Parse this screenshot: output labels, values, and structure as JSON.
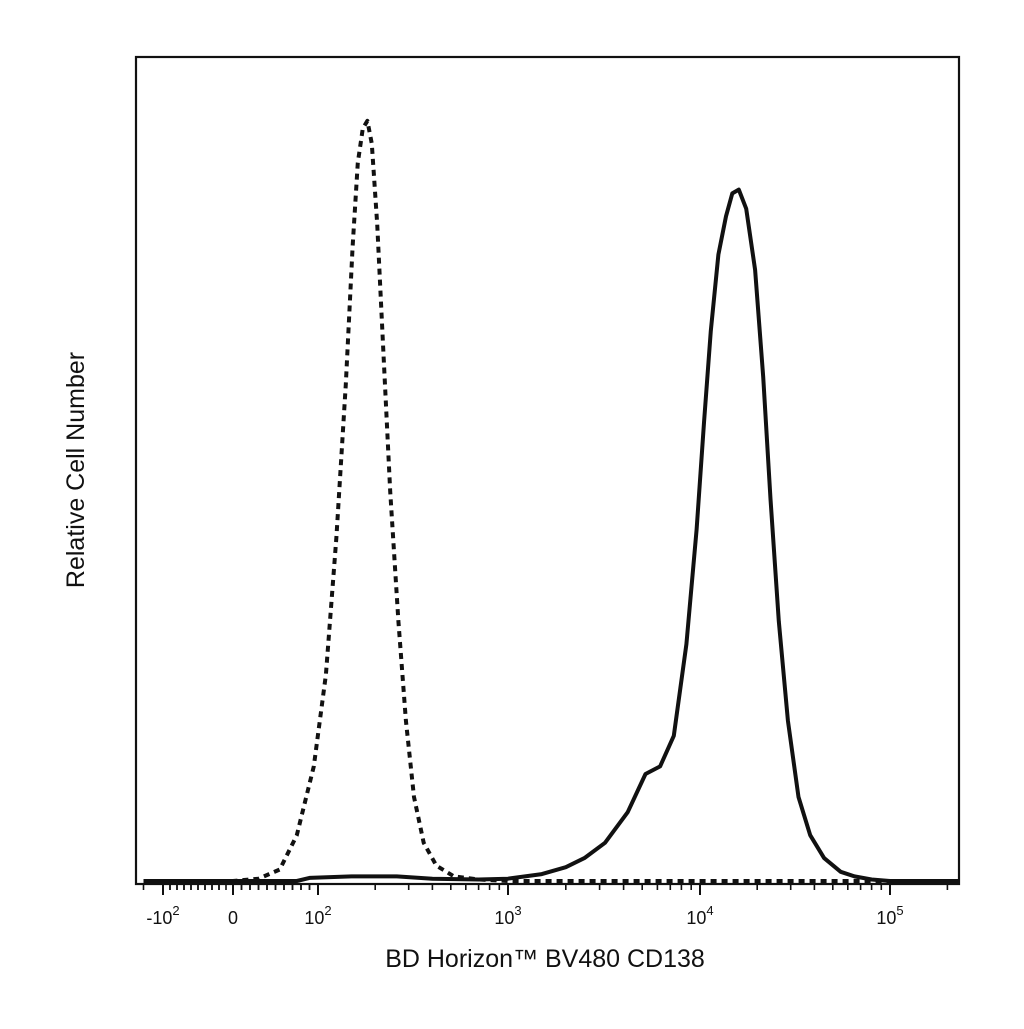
{
  "chart_data": {
    "type": "line",
    "xlabel": "BD Horizon™ BV480 CD138",
    "ylabel": "Relative Cell Number",
    "x_scale": "biexponential",
    "grid": false,
    "legend": "none",
    "x_ticks": [
      {
        "value": -100,
        "base": "-10",
        "exp": "2"
      },
      {
        "value": 0,
        "base": "0",
        "exp": ""
      },
      {
        "value": 100,
        "base": "10",
        "exp": "2"
      },
      {
        "value": 1000,
        "base": "10",
        "exp": "3"
      },
      {
        "value": 10000,
        "base": "10",
        "exp": "4"
      },
      {
        "value": 100000,
        "base": "10",
        "exp": "5"
      }
    ],
    "ylim": [
      0,
      100
    ],
    "series": [
      {
        "style": "dashed",
        "points": [
          [
            -200,
            0
          ],
          [
            0,
            0
          ],
          [
            30,
            0.3
          ],
          [
            55,
            1.5
          ],
          [
            75,
            6
          ],
          [
            95,
            15
          ],
          [
            110,
            27
          ],
          [
            125,
            45
          ],
          [
            140,
            65
          ],
          [
            152,
            83
          ],
          [
            162,
            94
          ],
          [
            172,
            98.5
          ],
          [
            182,
            99.5
          ],
          [
            192,
            96.5
          ],
          [
            205,
            86
          ],
          [
            220,
            70
          ],
          [
            240,
            51
          ],
          [
            265,
            34
          ],
          [
            290,
            21
          ],
          [
            320,
            11
          ],
          [
            360,
            5
          ],
          [
            420,
            2
          ],
          [
            520,
            0.6
          ],
          [
            700,
            0.2
          ],
          [
            1000,
            0
          ],
          [
            10000,
            0
          ],
          [
            230000,
            0
          ]
        ]
      },
      {
        "style": "solid",
        "points": [
          [
            -200,
            0
          ],
          [
            75,
            0
          ],
          [
            90,
            0.4
          ],
          [
            150,
            0.6
          ],
          [
            260,
            0.6
          ],
          [
            400,
            0.3
          ],
          [
            700,
            0.2
          ],
          [
            1000,
            0.3
          ],
          [
            1500,
            0.9
          ],
          [
            2000,
            1.8
          ],
          [
            2500,
            3
          ],
          [
            3200,
            5
          ],
          [
            4200,
            9
          ],
          [
            5200,
            14
          ],
          [
            6200,
            15
          ],
          [
            7300,
            19
          ],
          [
            8500,
            31
          ],
          [
            9600,
            46
          ],
          [
            10500,
            60
          ],
          [
            11400,
            72
          ],
          [
            12500,
            82
          ],
          [
            13700,
            87
          ],
          [
            14800,
            90
          ],
          [
            16000,
            90.5
          ],
          [
            17500,
            88
          ],
          [
            19500,
            80
          ],
          [
            21500,
            66
          ],
          [
            23500,
            50
          ],
          [
            26000,
            34
          ],
          [
            29000,
            21
          ],
          [
            33000,
            11
          ],
          [
            38000,
            6
          ],
          [
            45000,
            3
          ],
          [
            55000,
            1.2
          ],
          [
            65000,
            0.6
          ],
          [
            80000,
            0.2
          ],
          [
            100000,
            0
          ],
          [
            230000,
            0
          ]
        ]
      }
    ]
  }
}
